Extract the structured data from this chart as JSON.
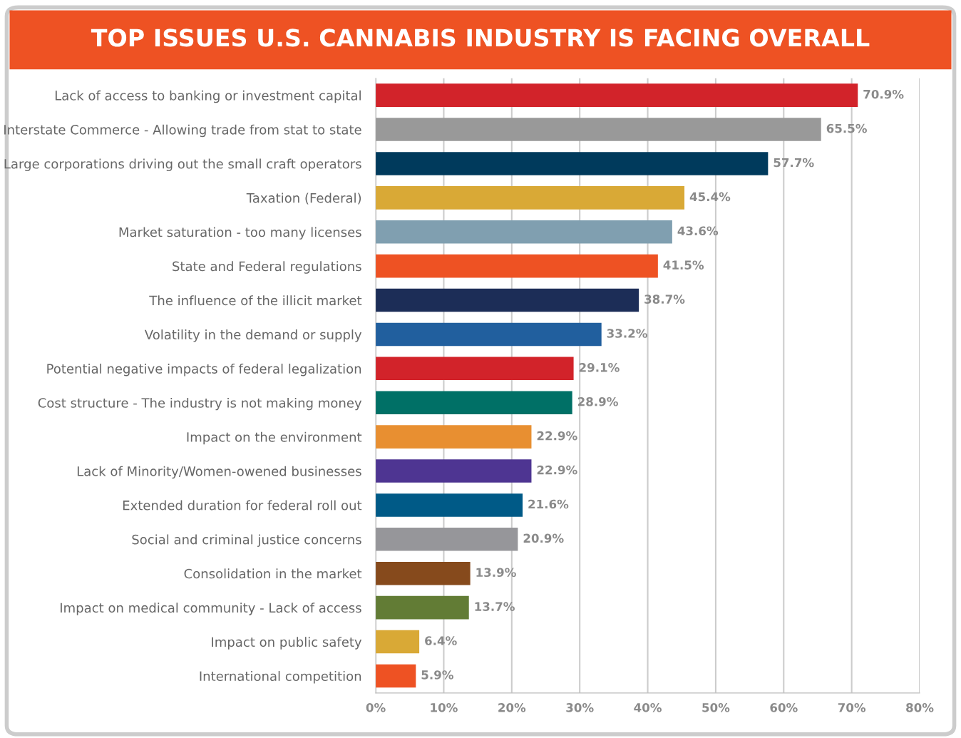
{
  "chart_data": {
    "type": "bar",
    "orientation": "horizontal",
    "title": "TOP ISSUES U.S. CANNABIS INDUSTRY IS FACING OVERALL",
    "categories": [
      "Lack of access to banking or investment capital",
      "Interstate Commerce - Allowing trade from stat to state",
      "Large corporations driving out the small craft operators",
      "Taxation (Federal)",
      "Market saturation - too many licenses",
      "State and Federal regulations",
      "The influence of the illicit market",
      "Volatility in the demand or supply",
      "Potential negative impacts of federal legalization",
      "Cost structure - The industry is not making money",
      "Impact on the environment",
      "Lack of Minority/Women-owened businesses",
      "Extended duration for federal roll out",
      "Social and criminal justice concerns",
      "Consolidation in the market",
      "Impact on medical community - Lack of access",
      "Impact on public safety",
      "International competition"
    ],
    "values": [
      70.9,
      65.5,
      57.7,
      45.4,
      43.6,
      41.5,
      38.7,
      33.2,
      29.1,
      28.9,
      22.9,
      22.9,
      21.6,
      20.9,
      13.9,
      13.7,
      6.4,
      5.9
    ],
    "value_labels": [
      "70.9%",
      "65.5%",
      "57.7%",
      "45.4%",
      "43.6%",
      "41.5%",
      "38.7%",
      "33.2%",
      "29.1%",
      "28.9%",
      "22.9%",
      "22.9%",
      "21.6%",
      "20.9%",
      "13.9%",
      "13.7%",
      "6.4%",
      "5.9%"
    ],
    "colors": [
      "#d2232a",
      "#999999",
      "#003a5c",
      "#d9a936",
      "#809fb0",
      "#ee5223",
      "#1c2d57",
      "#215f9e",
      "#d2232a",
      "#007066",
      "#e88f31",
      "#4e3592",
      "#005a87",
      "#96969a",
      "#864a1c",
      "#627c35",
      "#d9a936",
      "#ee5223"
    ],
    "xlim": [
      0,
      80
    ],
    "xticks": [
      {
        "value": 0,
        "label": "0%"
      },
      {
        "value": 10,
        "label": "10%"
      },
      {
        "value": 20,
        "label": "20%"
      },
      {
        "value": 30,
        "label": "30%"
      },
      {
        "value": 40,
        "label": "40%"
      },
      {
        "value": 50,
        "label": "50%"
      },
      {
        "value": 60,
        "label": "60%"
      },
      {
        "value": 70,
        "label": "70%"
      },
      {
        "value": 80,
        "label": "80%"
      }
    ],
    "grid": "x",
    "legend": false
  }
}
